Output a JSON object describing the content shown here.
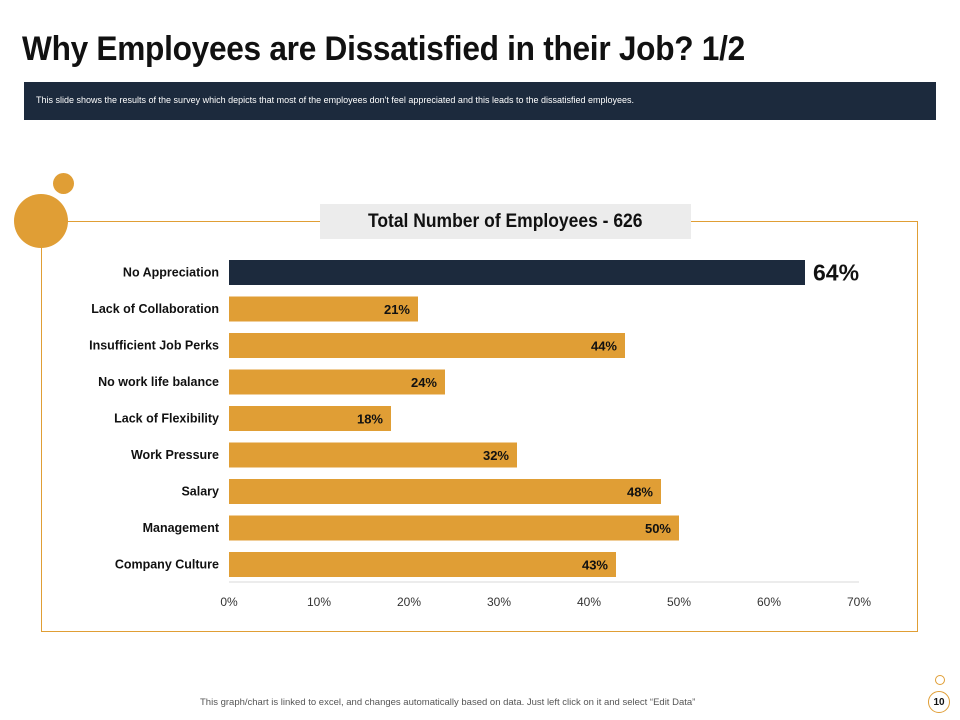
{
  "slide": {
    "title": "Why Employees are Dissatisfied in their Job? 1/2",
    "description": "This slide shows the results of the survey which depicts that most of the employees don't feel appreciated and this leads to the dissatisfied employees.",
    "footer_note": "This graph/chart is linked to excel, and changes automatically based on data. Just left click on it and select “Edit Data”",
    "page_number": "10"
  },
  "colors": {
    "accent": "#e09e35",
    "highlight": "#1c2a3d",
    "text": "#111111"
  },
  "chart_data": {
    "type": "bar",
    "orientation": "horizontal",
    "title": "Total Number of Employees - 626",
    "categories": [
      "No Appreciation",
      "Lack of Collaboration",
      "Insufficient Job Perks",
      "No work life balance",
      "Lack of Flexibility",
      "Work Pressure",
      "Salary",
      "Management",
      "Company Culture"
    ],
    "values": [
      64,
      21,
      44,
      24,
      18,
      32,
      48,
      50,
      43
    ],
    "value_labels": [
      "64%",
      "21%",
      "44%",
      "24%",
      "18%",
      "32%",
      "48%",
      "50%",
      "43%"
    ],
    "highlight_index": 0,
    "xlim": [
      0,
      70
    ],
    "xticks": [
      0,
      10,
      20,
      30,
      40,
      50,
      60,
      70
    ],
    "xtick_labels": [
      "0%",
      "10%",
      "20%",
      "30%",
      "40%",
      "50%",
      "60%",
      "70%"
    ],
    "xlabel": "",
    "ylabel": "",
    "grid": false
  }
}
